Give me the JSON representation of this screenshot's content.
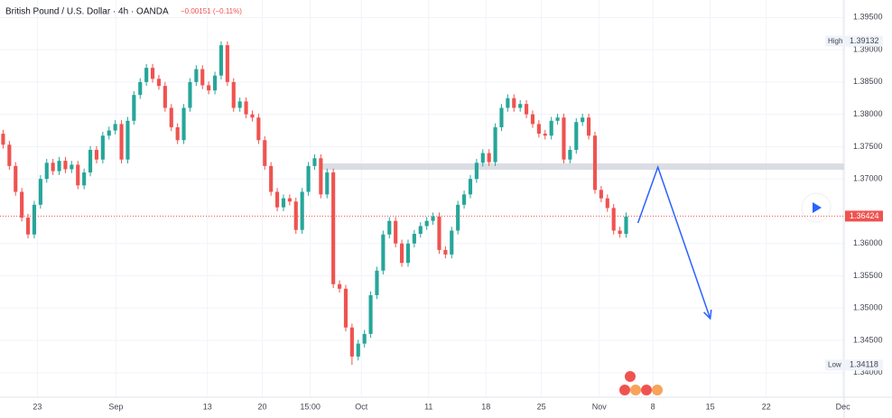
{
  "chart_data": {
    "type": "candlestick",
    "title": "British Pound / U.S. Dollar · 4h · OANDA",
    "change": "−0.00151 (−0.11%)",
    "up_color": "#26a69a",
    "down_color": "#ef5350",
    "grid": true,
    "xlim": [
      -0.5,
      135
    ],
    "xticks": [
      {
        "value": 5.5,
        "label": "23"
      },
      {
        "value": 18.1,
        "label": "Sep"
      },
      {
        "value": 32.8,
        "label": "13"
      },
      {
        "value": 41.6,
        "label": "20"
      },
      {
        "value": 49.3,
        "label": "15:00"
      },
      {
        "value": 57.5,
        "label": "Oct"
      },
      {
        "value": 68.3,
        "label": "11"
      },
      {
        "value": 77.5,
        "label": "18"
      },
      {
        "value": 86.4,
        "label": "25"
      },
      {
        "value": 95.7,
        "label": "Nov"
      },
      {
        "value": 104.3,
        "label": "8"
      },
      {
        "value": 113.5,
        "label": "15"
      },
      {
        "value": 122.5,
        "label": "22"
      },
      {
        "value": 134.8,
        "label": "Dec"
      }
    ],
    "ylim": [
      1.3362,
      1.3977
    ],
    "yticks": [
      {
        "value": 1.34,
        "label": "1.34000"
      },
      {
        "value": 1.345,
        "label": "1.34500"
      },
      {
        "value": 1.35,
        "label": "1.35000"
      },
      {
        "value": 1.355,
        "label": "1.35500"
      },
      {
        "value": 1.36,
        "label": "1.36000"
      },
      {
        "value": 1.37,
        "label": "1.37000"
      },
      {
        "value": 1.375,
        "label": "1.37500"
      },
      {
        "value": 1.38,
        "label": "1.38000"
      },
      {
        "value": 1.385,
        "label": "1.38500"
      },
      {
        "value": 1.39,
        "label": "1.39000"
      },
      {
        "value": 1.395,
        "label": "1.39500"
      }
    ],
    "open": [
      1.377,
      1.3753,
      1.372,
      1.368,
      1.364,
      1.3614,
      1.366,
      1.37,
      1.3725,
      1.3712,
      1.3728,
      1.3715,
      1.3722,
      1.369,
      1.371,
      1.3745,
      1.373,
      1.3767,
      1.3775,
      1.3785,
      1.373,
      1.379,
      1.383,
      1.385,
      1.3872,
      1.3855,
      1.3844,
      1.381,
      1.378,
      1.376,
      1.381,
      1.385,
      1.387,
      1.3845,
      1.3837,
      1.386,
      1.3907,
      1.385,
      1.381,
      1.382,
      1.38,
      1.3795,
      1.376,
      1.372,
      1.368,
      1.3656,
      1.367,
      1.3665,
      1.3621,
      1.368,
      1.372,
      1.3732,
      1.3676,
      1.371,
      1.3537,
      1.353,
      1.347,
      1.3425,
      1.3445,
      1.346,
      1.352,
      1.3558,
      1.3614,
      1.3635,
      1.36,
      1.357,
      1.36,
      1.3615,
      1.3627,
      1.3635,
      1.3642,
      1.359,
      1.3583,
      1.362,
      1.366,
      1.3676,
      1.37,
      1.3725,
      1.374,
      1.3726,
      1.378,
      1.381,
      1.3825,
      1.381,
      1.3816,
      1.38,
      1.3785,
      1.377,
      1.3767,
      1.379,
      1.3795,
      1.373,
      1.3745,
      1.3788,
      1.3795,
      1.3767,
      1.3683,
      1.367,
      1.3655,
      1.362,
      1.3615
    ],
    "high": [
      1.3776,
      1.3759,
      1.3726,
      1.3686,
      1.3646,
      1.3666,
      1.3706,
      1.3731,
      1.3731,
      1.3734,
      1.3734,
      1.3728,
      1.3728,
      1.3716,
      1.3751,
      1.3751,
      1.3773,
      1.3781,
      1.3791,
      1.3791,
      1.3796,
      1.3836,
      1.3856,
      1.3878,
      1.3878,
      1.3861,
      1.385,
      1.3816,
      1.3786,
      1.3816,
      1.3856,
      1.3876,
      1.3876,
      1.3851,
      1.3866,
      1.3913,
      1.3913,
      1.3856,
      1.3826,
      1.3826,
      1.3806,
      1.3801,
      1.3766,
      1.3726,
      1.3686,
      1.3676,
      1.3676,
      1.3671,
      1.3686,
      1.3726,
      1.3738,
      1.3738,
      1.3716,
      1.3716,
      1.3543,
      1.3536,
      1.3476,
      1.3451,
      1.3466,
      1.3526,
      1.3564,
      1.362,
      1.3641,
      1.3641,
      1.3606,
      1.3606,
      1.3621,
      1.3633,
      1.3641,
      1.3648,
      1.3648,
      1.3596,
      1.3626,
      1.3666,
      1.3682,
      1.3706,
      1.3731,
      1.3746,
      1.3746,
      1.3786,
      1.3816,
      1.3831,
      1.3831,
      1.3822,
      1.3822,
      1.3806,
      1.3791,
      1.3776,
      1.3796,
      1.3801,
      1.3801,
      1.3751,
      1.3794,
      1.3801,
      1.3801,
      1.3773,
      1.3689,
      1.3676,
      1.3661,
      1.3626,
      1.3648
    ],
    "low": [
      1.3747,
      1.3714,
      1.3674,
      1.3634,
      1.3608,
      1.3608,
      1.3654,
      1.3694,
      1.3706,
      1.3706,
      1.3709,
      1.3709,
      1.3684,
      1.3684,
      1.3704,
      1.3724,
      1.3724,
      1.3761,
      1.3769,
      1.3724,
      1.3724,
      1.3784,
      1.3824,
      1.3844,
      1.3849,
      1.3838,
      1.3804,
      1.3774,
      1.3754,
      1.3754,
      1.3804,
      1.3844,
      1.3839,
      1.3831,
      1.3831,
      1.3854,
      1.3844,
      1.3804,
      1.3804,
      1.3794,
      1.3789,
      1.3754,
      1.3714,
      1.3674,
      1.365,
      1.365,
      1.3659,
      1.3615,
      1.3615,
      1.3674,
      1.3714,
      1.367,
      1.367,
      1.3531,
      1.3524,
      1.3464,
      1.3412,
      1.3419,
      1.3439,
      1.3454,
      1.3514,
      1.3552,
      1.3608,
      1.3594,
      1.3564,
      1.3564,
      1.3594,
      1.3609,
      1.3621,
      1.3629,
      1.3584,
      1.3577,
      1.3577,
      1.3614,
      1.3654,
      1.367,
      1.3694,
      1.3719,
      1.372,
      1.372,
      1.3774,
      1.3804,
      1.3804,
      1.3804,
      1.3794,
      1.3779,
      1.3764,
      1.3761,
      1.3761,
      1.3784,
      1.3724,
      1.3724,
      1.3739,
      1.3782,
      1.3761,
      1.3677,
      1.3664,
      1.3649,
      1.3614,
      1.3609,
      1.3609
    ],
    "close": [
      1.3753,
      1.372,
      1.368,
      1.364,
      1.3614,
      1.366,
      1.37,
      1.3725,
      1.3712,
      1.3728,
      1.3715,
      1.3722,
      1.369,
      1.371,
      1.3745,
      1.373,
      1.3767,
      1.3775,
      1.3785,
      1.373,
      1.379,
      1.383,
      1.385,
      1.3872,
      1.3855,
      1.3844,
      1.381,
      1.378,
      1.376,
      1.381,
      1.385,
      1.387,
      1.3845,
      1.3837,
      1.386,
      1.3907,
      1.385,
      1.381,
      1.382,
      1.38,
      1.3795,
      1.376,
      1.372,
      1.368,
      1.3656,
      1.367,
      1.3665,
      1.3621,
      1.368,
      1.372,
      1.3732,
      1.3676,
      1.371,
      1.3537,
      1.353,
      1.347,
      1.3425,
      1.3445,
      1.346,
      1.352,
      1.3558,
      1.3614,
      1.3635,
      1.36,
      1.357,
      1.36,
      1.3615,
      1.3627,
      1.3635,
      1.3642,
      1.359,
      1.3583,
      1.362,
      1.366,
      1.3676,
      1.37,
      1.3725,
      1.374,
      1.3726,
      1.378,
      1.381,
      1.3825,
      1.381,
      1.3816,
      1.38,
      1.3785,
      1.377,
      1.3767,
      1.379,
      1.3795,
      1.373,
      1.3745,
      1.3788,
      1.3795,
      1.3767,
      1.3683,
      1.367,
      1.3655,
      1.362,
      1.3615,
      1.3642
    ],
    "last_price": 1.36424,
    "high_marker": {
      "text": "High",
      "value": 1.39132
    },
    "low_marker": {
      "text": "Low",
      "value": 1.34118
    },
    "zone": {
      "from": 50.7,
      "range": [
        1.3714,
        1.3724
      ],
      "color": "#d1d4dc"
    },
    "projection": {
      "color": "#2962ff",
      "x": [
        101.9,
        105.1,
        113.5
      ],
      "y": [
        1.36317,
        1.37183,
        1.34837
      ]
    }
  }
}
